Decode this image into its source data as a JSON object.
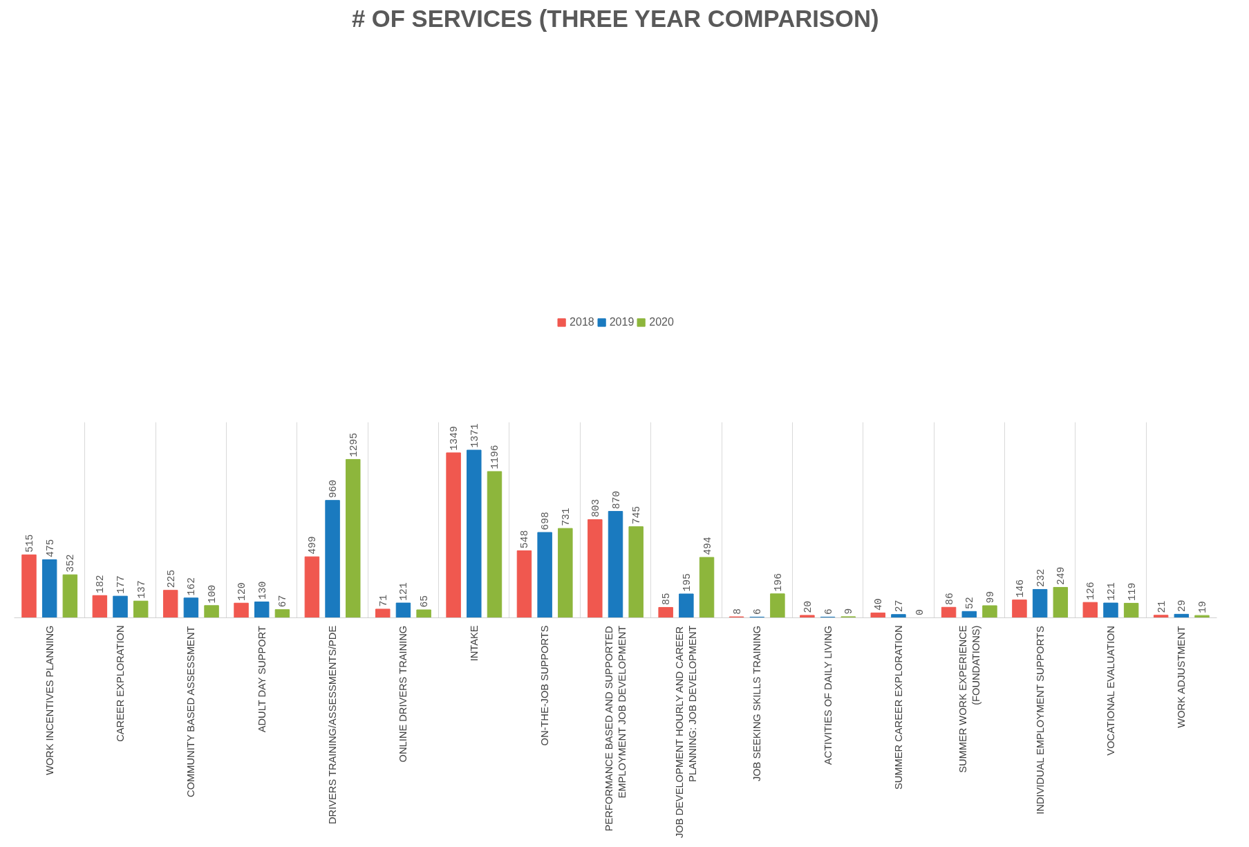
{
  "chart_data": {
    "type": "bar",
    "title": "# OF SERVICES (THREE YEAR COMPARISON)",
    "categories": [
      "WORK INCENTIVES PLANNING",
      "CAREER EXPLORATION",
      "COMMUNITY BASED ASSESSMENT",
      "ADULT DAY SUPPORT",
      "DRIVERS TRAINING/ASSESSMENTS/PDE",
      "ONLINE DRIVERS TRAINING",
      "INTAKE",
      "ON-THE-JOB SUPPORTS",
      "PERFORMANCE BASED AND SUPPORTED\nEMPLOYMENT JOB DEVELOPMENT",
      "JOB DEVELOPMENT HOURLY AND CAREER\nPLANNING: JOB DEVELOPMENT",
      "JOB SEEKING SKILLS TRAINING",
      "ACTIVITIES OF DAILY LIVING",
      "SUMMER CAREER EXPLORATION",
      "SUMMER WORK EXPERIENCE\n(FOUNDATIONS)",
      "INDIVIDUAL EMPLOYMENT SUPPORTS",
      "VOCATIONAL EVALUATION",
      "WORK ADJUSTMENT"
    ],
    "series": [
      {
        "name": "2018",
        "color": "#f0584f",
        "values": [
          515,
          182,
          225,
          120,
          499,
          71,
          1349,
          548,
          803,
          85,
          8,
          20,
          40,
          86,
          146,
          126,
          21
        ]
      },
      {
        "name": "2019",
        "color": "#1a7abf",
        "values": [
          475,
          177,
          162,
          130,
          960,
          121,
          1371,
          698,
          870,
          195,
          6,
          6,
          27,
          52,
          232,
          121,
          29
        ]
      },
      {
        "name": "2020",
        "color": "#8db63c",
        "values": [
          352,
          137,
          100,
          67,
          1295,
          65,
          1196,
          731,
          745,
          494,
          196,
          9,
          0,
          99,
          249,
          119,
          19
        ]
      }
    ],
    "ylim": [
      0,
      1600
    ],
    "tick_labels": "x",
    "data_labels": true,
    "grid": "x",
    "legend": "top"
  }
}
